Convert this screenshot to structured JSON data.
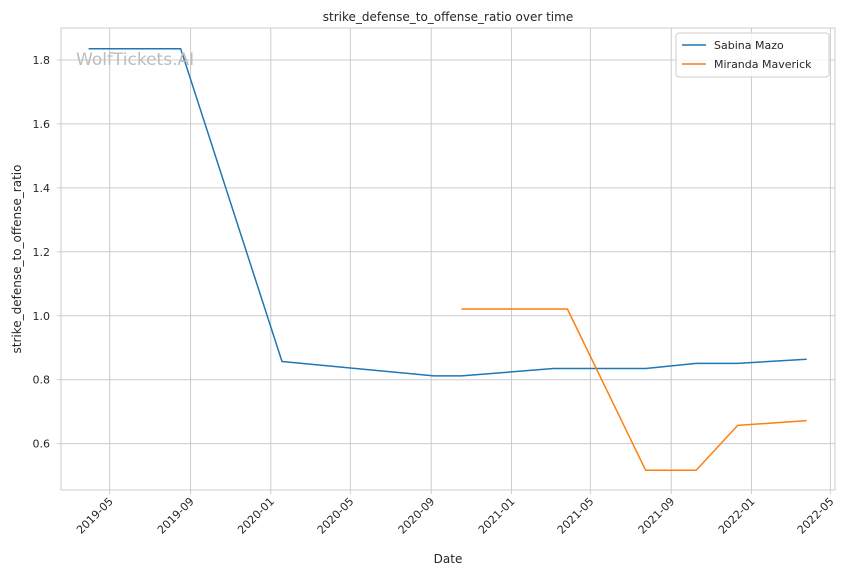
{
  "chart_data": {
    "type": "line",
    "title": "strike_defense_to_offense_ratio over time",
    "xlabel": "Date",
    "ylabel": "strike_defense_to_offense_ratio",
    "watermark": "WolfTickets.AI",
    "xlim": [
      "2019-02-16",
      "2022-05-08"
    ],
    "ylim": [
      0.455,
      1.9
    ],
    "x_ticks": [
      "2019-05-01",
      "2019-09-01",
      "2020-01-01",
      "2020-05-01",
      "2020-09-01",
      "2021-01-01",
      "2021-05-01",
      "2021-09-01",
      "2022-01-01",
      "2022-05-01"
    ],
    "x_tick_labels": [
      "2019-05",
      "2019-09",
      "2020-01",
      "2020-05",
      "2020-09",
      "2021-01",
      "2021-05",
      "2021-09",
      "2022-01",
      "2022-05"
    ],
    "y_ticks": [
      0.6,
      0.8,
      1.0,
      1.2,
      1.4,
      1.6,
      1.8
    ],
    "y_tick_labels": [
      "0.6",
      "0.8",
      "1.0",
      "1.2",
      "1.4",
      "1.6",
      "1.8"
    ],
    "grid": true,
    "legend_position": "top-right",
    "series": [
      {
        "name": "Sabina Mazo",
        "color": "#1f77b4",
        "points": [
          {
            "x": "2019-03-30",
            "y": 1.835
          },
          {
            "x": "2019-08-17",
            "y": 1.835
          },
          {
            "x": "2020-01-18",
            "y": 0.857
          },
          {
            "x": "2020-09-05",
            "y": 0.812
          },
          {
            "x": "2020-10-17",
            "y": 0.812
          },
          {
            "x": "2021-03-06",
            "y": 0.835
          },
          {
            "x": "2021-07-24",
            "y": 0.835
          },
          {
            "x": "2021-10-09",
            "y": 0.851
          },
          {
            "x": "2021-12-11",
            "y": 0.851
          },
          {
            "x": "2022-03-26",
            "y": 0.864
          }
        ]
      },
      {
        "name": "Miranda Maverick",
        "color": "#ff7f0e",
        "points": [
          {
            "x": "2020-10-17",
            "y": 1.021
          },
          {
            "x": "2021-03-27",
            "y": 1.021
          },
          {
            "x": "2021-07-24",
            "y": 0.517
          },
          {
            "x": "2021-10-09",
            "y": 0.517
          },
          {
            "x": "2021-12-11",
            "y": 0.657
          },
          {
            "x": "2022-03-26",
            "y": 0.672
          }
        ]
      }
    ]
  }
}
